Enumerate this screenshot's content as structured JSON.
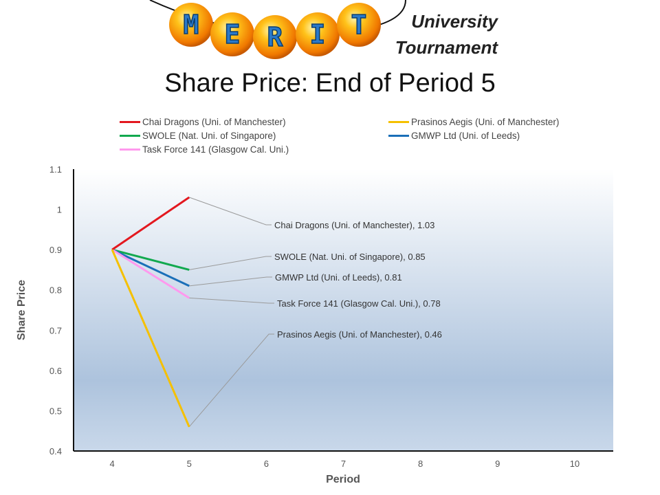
{
  "header": {
    "logo_letters": [
      "M",
      "E",
      "R",
      "I",
      "T"
    ],
    "line1": "University",
    "line2": "Tournament"
  },
  "chart_data": {
    "type": "line",
    "title": "Share Price: End of Period 5",
    "xlabel": "Period",
    "ylabel": "Share Price",
    "x_ticks": [
      4,
      5,
      6,
      7,
      8,
      9,
      10
    ],
    "y_ticks": [
      0.4,
      0.5,
      0.6,
      0.7,
      0.8,
      0.9,
      1,
      1.1
    ],
    "xlim": [
      3.5,
      10.5
    ],
    "ylim": [
      0.4,
      1.1
    ],
    "legend_position": "top",
    "series": [
      {
        "name": "Chai Dragons (Uni. of Manchester)",
        "color": "#e3181f",
        "x": [
          4,
          5
        ],
        "y": [
          0.9,
          1.03
        ],
        "label": "Chai Dragons (Uni. of Manchester), 1.03"
      },
      {
        "name": "Prasinos Aegis (Uni. of Manchester)",
        "color": "#f5c000",
        "x": [
          4,
          5
        ],
        "y": [
          0.9,
          0.46
        ],
        "label": "Prasinos Aegis (Uni. of Manchester), 0.46"
      },
      {
        "name": "SWOLE (Nat. Uni. of Singapore)",
        "color": "#12a94f",
        "x": [
          4,
          5
        ],
        "y": [
          0.9,
          0.85
        ],
        "label": "SWOLE (Nat. Uni. of Singapore), 0.85"
      },
      {
        "name": "GMWP Ltd (Uni. of Leeds)",
        "color": "#1a6fb8",
        "x": [
          4,
          5
        ],
        "y": [
          0.9,
          0.81
        ],
        "label": "GMWP Ltd (Uni. of Leeds), 0.81"
      },
      {
        "name": "Task Force 141 (Glasgow Cal. Uni.)",
        "color": "#ff99ee",
        "x": [
          4,
          5
        ],
        "y": [
          0.9,
          0.78
        ],
        "label": "Task Force 141 (Glasgow Cal. Uni.), 0.78"
      }
    ]
  }
}
